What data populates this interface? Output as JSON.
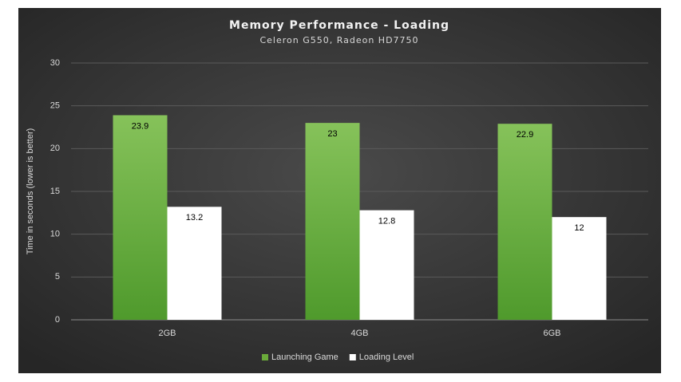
{
  "chart_data": {
    "type": "bar",
    "title": "Memory Performance - Loading",
    "subtitle": "Celeron G550, Radeon HD7750",
    "y_label": "Time in seconds (lower is better)",
    "categories": [
      "2GB",
      "4GB",
      "6GB"
    ],
    "series": [
      {
        "name": "Launching Game",
        "color": "#6aaa3a",
        "values": [
          23.9,
          23,
          22.9
        ]
      },
      {
        "name": "Loading Level",
        "color": "#ffffff",
        "values": [
          13.2,
          12.8,
          12
        ]
      }
    ],
    "ylim": [
      0,
      30
    ],
    "yticks": [
      0,
      5,
      10,
      15,
      20,
      25,
      30
    ],
    "grid": true,
    "legend": "bottom"
  }
}
